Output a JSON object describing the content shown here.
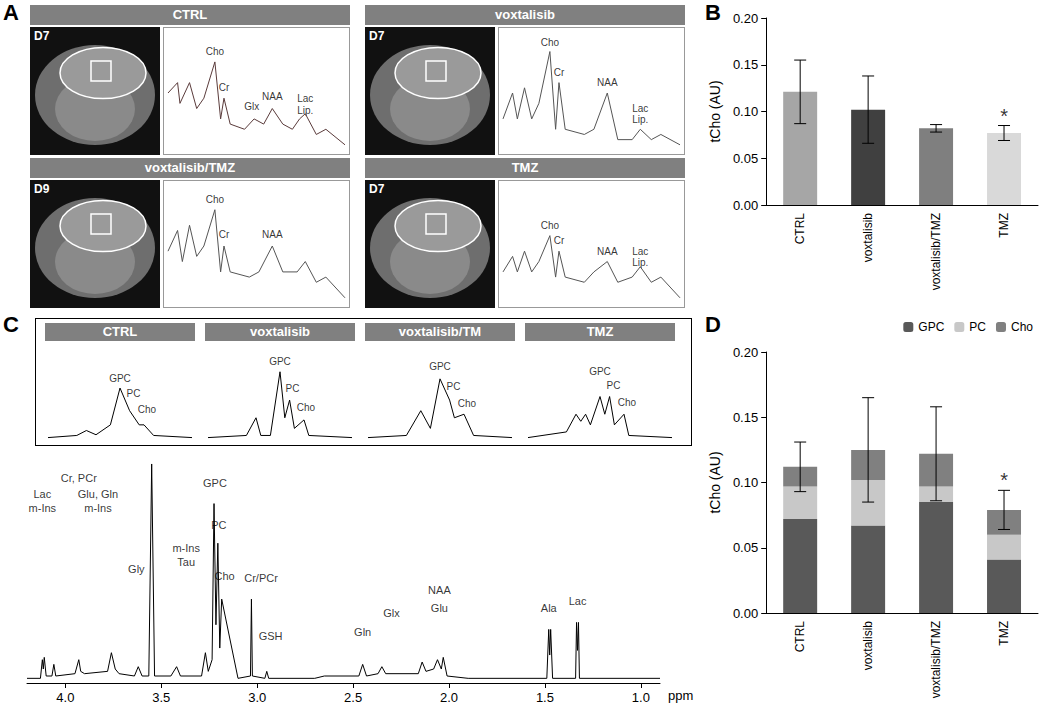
{
  "chart_data": [
    {
      "panel": "A",
      "type": "line",
      "title": "CTRL",
      "subtitle": "D7",
      "color": "#5a3b3b",
      "xlim": [
        0.5,
        4.2
      ],
      "ylim": [
        0,
        1.1
      ],
      "tick_labels": false,
      "x": [
        4.2,
        4.0,
        3.95,
        3.75,
        3.6,
        3.45,
        3.22,
        3.1,
        3.03,
        2.9,
        2.6,
        2.4,
        2.2,
        2.02,
        1.8,
        1.6,
        1.45,
        1.33,
        1.1,
        0.9,
        0.5
      ],
      "values": [
        0.55,
        0.65,
        0.45,
        0.65,
        0.4,
        0.5,
        0.85,
        0.3,
        0.5,
        0.25,
        0.2,
        0.3,
        0.25,
        0.4,
        0.25,
        0.2,
        0.3,
        0.35,
        0.15,
        0.2,
        0.05
      ],
      "annotations": [
        {
          "text": "Cho",
          "x": 3.22,
          "y": 0.95
        },
        {
          "text": "Cr",
          "x": 3.03,
          "y": 0.6
        },
        {
          "text": "Glx",
          "x": 2.45,
          "y": 0.42
        },
        {
          "text": "NAA",
          "x": 2.02,
          "y": 0.52
        },
        {
          "text": "Lac",
          "x": 1.33,
          "y": 0.5
        },
        {
          "text": "Lip.",
          "x": 1.33,
          "y": 0.38
        }
      ]
    },
    {
      "type": "line",
      "title": "voxtalisib",
      "subtitle": "D7",
      "color": "#555555",
      "xlim": [
        0.5,
        4.2
      ],
      "ylim": [
        0,
        1.1
      ],
      "tick_labels": false,
      "x": [
        4.2,
        4.0,
        3.9,
        3.75,
        3.6,
        3.45,
        3.22,
        3.1,
        3.03,
        2.9,
        2.5,
        2.3,
        2.02,
        1.8,
        1.5,
        1.33,
        1.1,
        0.9,
        0.5
      ],
      "values": [
        0.3,
        0.55,
        0.3,
        0.6,
        0.3,
        0.45,
        0.95,
        0.2,
        0.65,
        0.2,
        0.15,
        0.2,
        0.55,
        0.1,
        0.1,
        0.2,
        0.1,
        0.15,
        0.05
      ],
      "annotations": [
        {
          "text": "Cho",
          "x": 3.22,
          "y": 1.04
        },
        {
          "text": "Cr",
          "x": 3.03,
          "y": 0.75
        },
        {
          "text": "NAA",
          "x": 2.02,
          "y": 0.65
        },
        {
          "text": "Lac",
          "x": 1.33,
          "y": 0.4
        },
        {
          "text": "Lip.",
          "x": 1.33,
          "y": 0.29
        }
      ]
    },
    {
      "type": "line",
      "title": "voxtalisib/TMZ",
      "subtitle": "D9",
      "color": "#555555",
      "xlim": [
        0.5,
        4.2
      ],
      "ylim": [
        0,
        1.1
      ],
      "tick_labels": false,
      "x": [
        4.2,
        4.0,
        3.9,
        3.75,
        3.6,
        3.45,
        3.22,
        3.1,
        3.03,
        2.9,
        2.5,
        2.3,
        2.02,
        1.8,
        1.5,
        1.33,
        1.1,
        0.9,
        0.5
      ],
      "values": [
        0.5,
        0.7,
        0.4,
        0.75,
        0.45,
        0.55,
        0.9,
        0.3,
        0.55,
        0.3,
        0.25,
        0.3,
        0.55,
        0.3,
        0.3,
        0.4,
        0.2,
        0.25,
        0.05
      ],
      "annotations": [
        {
          "text": "Cho",
          "x": 3.22,
          "y": 1.0
        },
        {
          "text": "Cr",
          "x": 3.03,
          "y": 0.66
        },
        {
          "text": "NAA",
          "x": 2.02,
          "y": 0.66
        }
      ]
    },
    {
      "type": "line",
      "title": "TMZ",
      "subtitle": "D7",
      "color": "#555555",
      "xlim": [
        0.5,
        4.2
      ],
      "ylim": [
        0,
        1.1
      ],
      "tick_labels": false,
      "x": [
        4.2,
        4.0,
        3.9,
        3.75,
        3.6,
        3.45,
        3.22,
        3.1,
        3.03,
        2.9,
        2.5,
        2.3,
        2.02,
        1.8,
        1.5,
        1.33,
        1.1,
        0.9,
        0.5
      ],
      "values": [
        0.3,
        0.45,
        0.3,
        0.5,
        0.3,
        0.4,
        0.65,
        0.25,
        0.5,
        0.25,
        0.2,
        0.3,
        0.4,
        0.2,
        0.25,
        0.35,
        0.2,
        0.25,
        0.05
      ],
      "annotations": [
        {
          "text": "Cho",
          "x": 3.22,
          "y": 0.75
        },
        {
          "text": "Cr",
          "x": 3.03,
          "y": 0.6
        },
        {
          "text": "NAA",
          "x": 2.02,
          "y": 0.5
        },
        {
          "text": "Lac",
          "x": 1.33,
          "y": 0.5
        },
        {
          "text": "Lip.",
          "x": 1.33,
          "y": 0.39
        }
      ]
    },
    {
      "panel": "B",
      "type": "bar",
      "ylabel": "tCho (AU)",
      "categories": [
        "CTRL",
        "voxtalisib",
        "voxtalisib/TMZ",
        "TMZ"
      ],
      "values": [
        0.121,
        0.102,
        0.082,
        0.077
      ],
      "errors": [
        0.034,
        0.036,
        0.004,
        0.008
      ],
      "colors": [
        "#a6a6a6",
        "#404040",
        "#7f7f7f",
        "#d9d9d9"
      ],
      "ylim": [
        0,
        0.2
      ],
      "yticks": [
        {
          "value": 0,
          "label": "0.00"
        },
        0.05,
        {
          "value": 0.1,
          "label": "0.10"
        },
        0.15,
        {
          "value": 0.2,
          "label": "0.20"
        }
      ],
      "grid": false,
      "annotations": [
        {
          "category": "TMZ",
          "text": "*"
        }
      ]
    },
    {
      "panel": "C",
      "type": "line",
      "xlabel": "ppm",
      "color": "#000000",
      "xlim": [
        0.9,
        4.2
      ],
      "ylim": [
        0,
        1
      ],
      "tick_labels": "x",
      "xticks": [
        {
          "value": 1,
          "label": "1.0"
        },
        1.5,
        {
          "value": 2,
          "label": "2.0"
        },
        2.5,
        {
          "value": 3,
          "label": "3.0"
        },
        3.5,
        {
          "value": 4,
          "label": "4.0"
        }
      ],
      "x": [
        4.2,
        4.13,
        4.12,
        4.115,
        4.11,
        4.1,
        4.07,
        4.06,
        4.05,
        3.95,
        3.93,
        3.92,
        3.9,
        3.78,
        3.76,
        3.74,
        3.72,
        3.64,
        3.62,
        3.6,
        3.565,
        3.55,
        3.535,
        3.45,
        3.42,
        3.4,
        3.29,
        3.27,
        3.255,
        3.235,
        3.225,
        3.215,
        3.205,
        3.195,
        3.185,
        3.1,
        3.035,
        3.03,
        3.025,
        2.96,
        2.95,
        2.94,
        2.7,
        2.65,
        2.47,
        2.45,
        2.43,
        2.37,
        2.35,
        2.33,
        2.16,
        2.14,
        2.12,
        2.08,
        2.06,
        2.04,
        2.03,
        2.01,
        1.9,
        1.49,
        1.48,
        1.475,
        1.47,
        1.46,
        1.34,
        1.335,
        1.33,
        1.325,
        1.32,
        0.9
      ],
      "values": [
        0.02,
        0.02,
        0.1,
        0.06,
        0.11,
        0.03,
        0.03,
        0.08,
        0.03,
        0.04,
        0.1,
        0.05,
        0.04,
        0.05,
        0.13,
        0.06,
        0.04,
        0.03,
        0.07,
        0.03,
        0.03,
        0.94,
        0.03,
        0.03,
        0.07,
        0.03,
        0.03,
        0.13,
        0.05,
        0.1,
        0.77,
        0.25,
        0.6,
        0.15,
        0.36,
        0.02,
        0.03,
        0.36,
        0.03,
        0.02,
        0.05,
        0.02,
        0.02,
        0.03,
        0.03,
        0.08,
        0.03,
        0.04,
        0.07,
        0.04,
        0.04,
        0.09,
        0.05,
        0.06,
        0.1,
        0.06,
        0.11,
        0.03,
        0.02,
        0.02,
        0.23,
        0.12,
        0.23,
        0.02,
        0.02,
        0.26,
        0.14,
        0.26,
        0.02,
        0.02
      ],
      "annotations": [
        {
          "text": "Lac",
          "x": 4.12,
          "y": 0.81
        },
        {
          "text": "m-Ins",
          "x": 4.12,
          "y": 0.75
        },
        {
          "text": "Cr, PCr",
          "x": 3.93,
          "y": 0.88
        },
        {
          "text": "Glu, Gln",
          "x": 3.83,
          "y": 0.81
        },
        {
          "text": "m-Ins",
          "x": 3.83,
          "y": 0.75
        },
        {
          "text": "Gly",
          "x": 3.63,
          "y": 0.49
        },
        {
          "text": "m-Ins",
          "x": 3.37,
          "y": 0.58
        },
        {
          "text": "Tau",
          "x": 3.37,
          "y": 0.52
        },
        {
          "text": "GPC",
          "x": 3.22,
          "y": 0.86
        },
        {
          "text": "PC",
          "x": 3.2,
          "y": 0.68
        },
        {
          "text": "Cho",
          "x": 3.17,
          "y": 0.46
        },
        {
          "text": "Cr/PCr",
          "x": 2.98,
          "y": 0.45
        },
        {
          "text": "GSH",
          "x": 2.93,
          "y": 0.2
        },
        {
          "text": "Gln",
          "x": 2.45,
          "y": 0.22
        },
        {
          "text": "Glx",
          "x": 2.3,
          "y": 0.3
        },
        {
          "text": "NAA",
          "x": 2.05,
          "y": 0.4
        },
        {
          "text": "Glu",
          "x": 2.05,
          "y": 0.32
        },
        {
          "text": "Ala",
          "x": 1.48,
          "y": 0.32
        },
        {
          "text": "Lac",
          "x": 1.33,
          "y": 0.35
        }
      ]
    },
    {
      "type": "line",
      "title": "CTRL",
      "color": "#000000",
      "xlim": [
        3.15,
        3.3
      ],
      "ylim": [
        0,
        1.3
      ],
      "tick_labels": false,
      "x": [
        3.3,
        3.27,
        3.26,
        3.25,
        3.235,
        3.225,
        3.215,
        3.205,
        3.2,
        3.19,
        3.15
      ],
      "values": [
        0.02,
        0.05,
        0.12,
        0.06,
        0.2,
        0.72,
        0.4,
        0.2,
        0.2,
        0.05,
        0.02
      ],
      "annotations": [
        {
          "text": "GPC",
          "x": 3.225,
          "y": 0.86
        },
        {
          "text": "PC",
          "x": 3.211,
          "y": 0.64
        },
        {
          "text": "Cho",
          "x": 3.197,
          "y": 0.42
        }
      ]
    },
    {
      "type": "line",
      "title": "voxtalisib",
      "color": "#000000",
      "xlim": [
        3.15,
        3.3
      ],
      "ylim": [
        0,
        1.3
      ],
      "tick_labels": false,
      "x": [
        3.3,
        3.26,
        3.25,
        3.245,
        3.235,
        3.225,
        3.22,
        3.215,
        3.21,
        3.2,
        3.195,
        3.15
      ],
      "values": [
        0.02,
        0.05,
        0.3,
        0.05,
        0.05,
        0.95,
        0.3,
        0.55,
        0.15,
        0.27,
        0.05,
        0.02
      ],
      "annotations": [
        {
          "text": "GPC",
          "x": 3.225,
          "y": 1.1
        },
        {
          "text": "PC",
          "x": 3.212,
          "y": 0.72
        },
        {
          "text": "Cho",
          "x": 3.198,
          "y": 0.45
        }
      ]
    },
    {
      "type": "line",
      "title": "voxtalisib/TM",
      "color": "#000000",
      "xlim": [
        3.15,
        3.3
      ],
      "ylim": [
        0,
        1.3
      ],
      "tick_labels": false,
      "x": [
        3.3,
        3.26,
        3.245,
        3.235,
        3.225,
        3.215,
        3.21,
        3.2,
        3.19,
        3.15
      ],
      "values": [
        0.02,
        0.05,
        0.4,
        0.15,
        0.85,
        0.55,
        0.3,
        0.35,
        0.05,
        0.02
      ],
      "annotations": [
        {
          "text": "GPC",
          "x": 3.225,
          "y": 1.02
        },
        {
          "text": "PC",
          "x": 3.211,
          "y": 0.74
        },
        {
          "text": "Cho",
          "x": 3.197,
          "y": 0.5
        }
      ]
    },
    {
      "type": "line",
      "title": "TMZ",
      "color": "#000000",
      "xlim": [
        3.15,
        3.3
      ],
      "ylim": [
        0,
        1.3
      ],
      "tick_labels": false,
      "x": [
        3.3,
        3.26,
        3.25,
        3.245,
        3.24,
        3.235,
        3.225,
        3.22,
        3.215,
        3.21,
        3.2,
        3.195,
        3.15
      ],
      "values": [
        0.02,
        0.1,
        0.35,
        0.25,
        0.35,
        0.2,
        0.6,
        0.35,
        0.6,
        0.2,
        0.35,
        0.05,
        0.02
      ],
      "annotations": [
        {
          "text": "GPC",
          "x": 3.225,
          "y": 0.96
        },
        {
          "text": "PC",
          "x": 3.211,
          "y": 0.76
        },
        {
          "text": "Cho",
          "x": 3.197,
          "y": 0.52
        }
      ]
    },
    {
      "panel": "D",
      "type": "bar",
      "stacked": true,
      "ylabel": "tCho (AU)",
      "legend": "top-right",
      "categories": [
        "CTRL",
        "voxtalisib",
        "voxtalisib/TMZ",
        "TMZ"
      ],
      "series": [
        {
          "name": "GPC",
          "color": "#595959",
          "values": [
            0.072,
            0.067,
            0.085,
            0.041
          ]
        },
        {
          "name": "PC",
          "color": "#c8c8c8",
          "values": [
            0.025,
            0.035,
            0.012,
            0.019
          ]
        },
        {
          "name": "Cho",
          "color": "#808080",
          "values": [
            0.015,
            0.023,
            0.025,
            0.019
          ]
        }
      ],
      "errors": [
        0.019,
        0.04,
        0.036,
        0.015
      ],
      "ylim": [
        0,
        0.2
      ],
      "yticks": [
        {
          "value": 0,
          "label": "0.00"
        },
        0.05,
        {
          "value": 0.1,
          "label": "0.10"
        },
        0.15,
        {
          "value": 0.2,
          "label": "0.20"
        }
      ],
      "grid": false,
      "annotations": [
        {
          "category": "TMZ",
          "text": "*"
        }
      ]
    }
  ]
}
